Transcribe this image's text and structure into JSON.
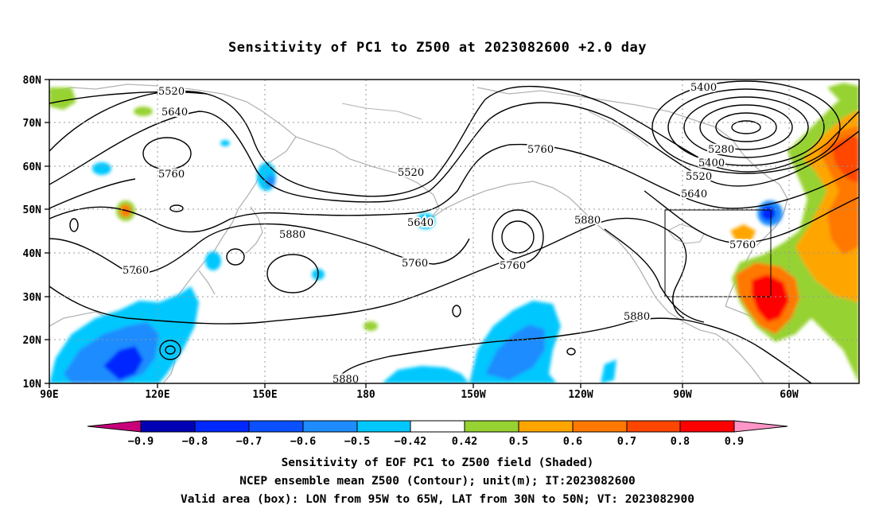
{
  "title": "Sensitivity of PC1 to Z500 at 2023082600 +2.0 day",
  "map": {
    "lon_range": [
      "90E",
      "60W"
    ],
    "lat_range": [
      "10N",
      "80N"
    ],
    "y_ticks": [
      "80N",
      "70N",
      "60N",
      "50N",
      "40N",
      "30N",
      "20N",
      "10N"
    ],
    "x_ticks": [
      "90E",
      "120E",
      "150E",
      "180",
      "150W",
      "120W",
      "90W",
      "60W"
    ],
    "grid": "dotted",
    "box": {
      "lon_west": "95W",
      "lon_east": "65W",
      "lat_south": "30N",
      "lat_north": "50N"
    }
  },
  "contour_labels": [
    "5520",
    "5640",
    "5760",
    "5760",
    "5400",
    "5280",
    "5400",
    "5520",
    "5640",
    "5760",
    "5520",
    "5640",
    "5880",
    "5880",
    "5760",
    "5760",
    "5760",
    "5880",
    "5880"
  ],
  "colorbar": {
    "colors": [
      "#c8007a",
      "#0000b4",
      "#0028ff",
      "#0a50ff",
      "#1e8cff",
      "#00c8ff",
      "#ffffff",
      "#96d232",
      "#ffa500",
      "#ff7800",
      "#ff4600",
      "#ff0000",
      "#ff96c8"
    ],
    "labels": [
      "−0.9",
      "−0.8",
      "−0.7",
      "−0.6",
      "−0.5",
      "−0.42",
      "0.42",
      "0.5",
      "0.6",
      "0.7",
      "0.8",
      "0.9"
    ]
  },
  "caption_lines": [
    "Sensitivity of EOF PC1 to Z500 field (Shaded)",
    "NCEP ensemble mean Z500 (Contour); unit(m); IT:2023082600",
    "Valid area (box): LON from 95W to 65W, LAT from 30N to 50N; VT: 2023082900"
  ]
}
